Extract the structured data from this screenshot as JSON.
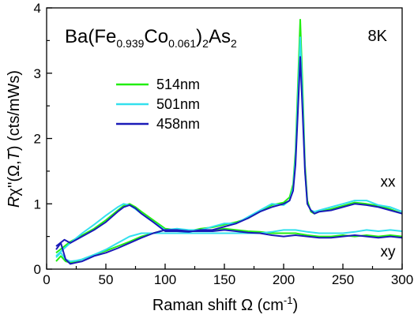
{
  "chart_data": {
    "type": "line",
    "title": {
      "prefix": "Ba(Fe",
      "sub1": "0.939",
      "mid": "Co",
      "sub2": "0.061",
      "close": ")",
      "sub3": "2",
      "tail": "As",
      "sub4": "2"
    },
    "temperature_label": "8K",
    "xlabel": {
      "main": "Raman shift Ω (cm",
      "sup": "-1",
      "end": ")"
    },
    "ylabel": {
      "r": "R",
      "chi": "χ",
      "rest": "''(Ω,",
      "t": "T",
      "end": ") (cts/mWs)"
    },
    "xlim": [
      0,
      300
    ],
    "ylim": [
      0,
      4
    ],
    "xticks": [
      0,
      50,
      100,
      150,
      200,
      250,
      300
    ],
    "yticks": [
      0,
      1,
      2,
      3,
      4
    ],
    "grid": false,
    "legend_position": "upper-left",
    "annotations": [
      {
        "text": "xx",
        "x": 288,
        "y": 1.35
      },
      {
        "text": "xy",
        "x": 288,
        "y": 0.28
      }
    ],
    "series": [
      {
        "name": "514nm",
        "color": "#22ee11",
        "xx": {
          "x": [
            8,
            15,
            20,
            30,
            40,
            50,
            60,
            65,
            70,
            75,
            80,
            90,
            100,
            110,
            120,
            130,
            140,
            150,
            160,
            170,
            180,
            190,
            200,
            205,
            208,
            210,
            212,
            214,
            216,
            218,
            220,
            223,
            226,
            230,
            240,
            250,
            260,
            270,
            280,
            290,
            300
          ],
          "y": [
            0.25,
            0.35,
            0.42,
            0.52,
            0.62,
            0.75,
            0.9,
            0.97,
            1.0,
            0.95,
            0.88,
            0.75,
            0.62,
            0.6,
            0.58,
            0.62,
            0.64,
            0.68,
            0.72,
            0.78,
            0.88,
            0.98,
            1.02,
            1.1,
            1.3,
            1.8,
            2.8,
            3.82,
            2.8,
            1.6,
            1.05,
            0.88,
            0.85,
            0.88,
            0.92,
            0.97,
            1.02,
            1.0,
            0.97,
            0.92,
            0.85
          ]
        },
        "xy": {
          "x": [
            8,
            12,
            16,
            20,
            25,
            30,
            40,
            50,
            60,
            70,
            80,
            90,
            100,
            110,
            120,
            130,
            140,
            150,
            160,
            170,
            180,
            190,
            200,
            210,
            220,
            230,
            240,
            250,
            260,
            270,
            280,
            290,
            300
          ],
          "y": [
            0.12,
            0.2,
            0.12,
            0.1,
            0.12,
            0.15,
            0.22,
            0.28,
            0.35,
            0.42,
            0.5,
            0.55,
            0.6,
            0.6,
            0.58,
            0.58,
            0.6,
            0.62,
            0.6,
            0.58,
            0.57,
            0.55,
            0.55,
            0.55,
            0.52,
            0.5,
            0.5,
            0.52,
            0.5,
            0.52,
            0.5,
            0.52,
            0.5
          ]
        }
      },
      {
        "name": "501nm",
        "color": "#33e0ee",
        "xx": {
          "x": [
            8,
            15,
            20,
            30,
            40,
            50,
            60,
            65,
            70,
            75,
            80,
            90,
            100,
            110,
            120,
            130,
            140,
            150,
            160,
            170,
            180,
            190,
            200,
            205,
            208,
            210,
            212,
            214,
            216,
            218,
            220,
            223,
            226,
            230,
            240,
            250,
            260,
            270,
            280,
            290,
            300
          ],
          "y": [
            0.2,
            0.32,
            0.4,
            0.55,
            0.68,
            0.82,
            0.95,
            1.0,
            0.98,
            0.92,
            0.85,
            0.72,
            0.6,
            0.62,
            0.6,
            0.6,
            0.65,
            0.7,
            0.7,
            0.8,
            0.9,
            1.0,
            0.98,
            1.05,
            1.25,
            1.7,
            2.6,
            3.55,
            2.6,
            1.5,
            1.0,
            0.9,
            0.88,
            0.9,
            0.95,
            1.0,
            1.05,
            1.05,
            0.98,
            0.95,
            0.88
          ]
        },
        "xy": {
          "x": [
            8,
            12,
            16,
            20,
            25,
            30,
            40,
            50,
            60,
            70,
            80,
            90,
            100,
            110,
            120,
            130,
            140,
            150,
            160,
            170,
            180,
            190,
            200,
            210,
            220,
            230,
            240,
            250,
            260,
            270,
            280,
            290,
            300
          ],
          "y": [
            0.18,
            0.25,
            0.15,
            0.12,
            0.13,
            0.15,
            0.22,
            0.3,
            0.4,
            0.5,
            0.55,
            0.55,
            0.55,
            0.55,
            0.55,
            0.55,
            0.55,
            0.55,
            0.55,
            0.55,
            0.55,
            0.57,
            0.6,
            0.6,
            0.57,
            0.55,
            0.55,
            0.55,
            0.57,
            0.6,
            0.58,
            0.6,
            0.58
          ]
        }
      },
      {
        "name": "458nm",
        "color": "#1a1ab8",
        "xx": {
          "x": [
            8,
            15,
            20,
            30,
            40,
            50,
            60,
            65,
            70,
            75,
            80,
            90,
            100,
            110,
            120,
            130,
            140,
            150,
            160,
            170,
            180,
            190,
            200,
            205,
            208,
            210,
            212,
            214,
            216,
            218,
            220,
            223,
            226,
            230,
            240,
            250,
            260,
            270,
            280,
            290,
            300
          ],
          "y": [
            0.35,
            0.45,
            0.4,
            0.5,
            0.6,
            0.72,
            0.88,
            0.95,
            0.98,
            0.93,
            0.85,
            0.72,
            0.58,
            0.58,
            0.57,
            0.6,
            0.6,
            0.65,
            0.7,
            0.78,
            0.88,
            0.95,
            1.0,
            1.05,
            1.2,
            1.6,
            2.4,
            3.25,
            2.4,
            1.5,
            1.0,
            0.9,
            0.85,
            0.88,
            0.9,
            0.95,
            1.0,
            0.98,
            0.95,
            0.9,
            0.85
          ]
        },
        "xy": {
          "x": [
            8,
            12,
            16,
            20,
            25,
            30,
            40,
            50,
            60,
            70,
            80,
            90,
            100,
            110,
            120,
            130,
            140,
            150,
            160,
            170,
            180,
            190,
            200,
            210,
            220,
            230,
            240,
            250,
            260,
            270,
            280,
            290,
            300
          ],
          "y": [
            0.3,
            0.4,
            0.15,
            0.08,
            0.1,
            0.12,
            0.2,
            0.25,
            0.32,
            0.4,
            0.48,
            0.55,
            0.6,
            0.6,
            0.58,
            0.58,
            0.58,
            0.6,
            0.58,
            0.56,
            0.55,
            0.52,
            0.5,
            0.52,
            0.5,
            0.48,
            0.48,
            0.5,
            0.52,
            0.5,
            0.48,
            0.5,
            0.48
          ]
        }
      }
    ]
  }
}
